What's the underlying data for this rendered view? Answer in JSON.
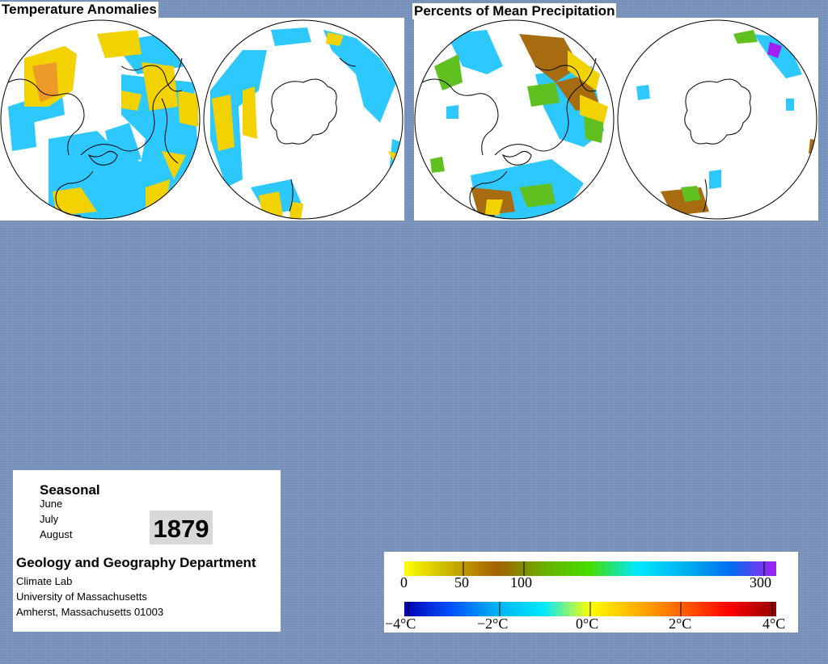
{
  "temperature_panel": {
    "title": "Temperature Anomalies"
  },
  "precipitation_panel": {
    "title": "Percents of Mean Precipitation"
  },
  "info": {
    "heading": "Seasonal",
    "months": [
      "June",
      "July",
      "August"
    ],
    "year": "1879",
    "department": "Geology and Geography Department",
    "lab": "Climate Lab",
    "university": "University of Massachusetts",
    "address": "Amherst, Massachusetts 01003"
  },
  "legend": {
    "precipitation": {
      "stops": [
        "#ffff00",
        "#c8b000",
        "#a46000",
        "#6ab000",
        "#44dd00",
        "#00e8ff",
        "#00b4f0",
        "#0070f0",
        "#a020f0"
      ],
      "ticks": [
        "0",
        "50",
        "100",
        "300"
      ]
    },
    "temperature": {
      "stops": [
        "#0000b0",
        "#0050ff",
        "#00b4f0",
        "#00e8ff",
        "#ffff00",
        "#ffb000",
        "#ff6000",
        "#ff0000",
        "#900000"
      ],
      "ticks": [
        "−4°C",
        "−2°C",
        "0°C",
        "2°C",
        "4°C"
      ]
    }
  },
  "colors": {
    "background": "#7e98bf",
    "cool": "#2cc8ff",
    "warm": "#f2d200",
    "hot": "#ee9a28",
    "brown": "#a86c10",
    "green": "#60c020",
    "purple": "#a020f0"
  }
}
